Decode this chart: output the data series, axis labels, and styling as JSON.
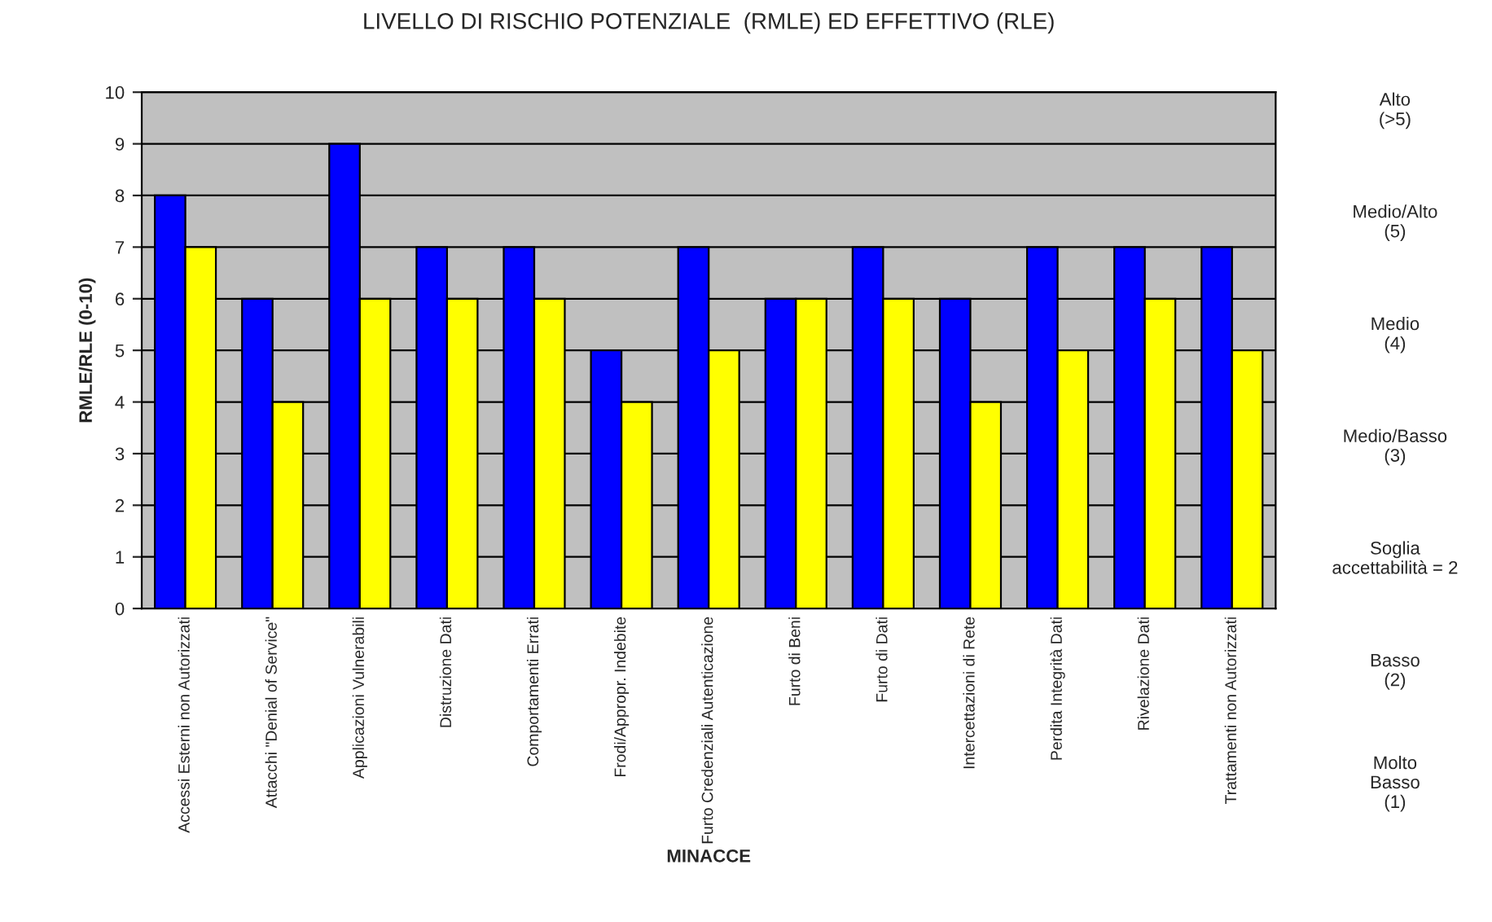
{
  "chart_data": {
    "type": "bar",
    "title": "LIVELLO DI RISCHIO POTENZIALE  (RMLE) ED EFFETTIVO (RLE)",
    "xlabel": "MINACCE",
    "ylabel": "RMLE/RLE (0-10)",
    "categories": [
      "Accessi Esterni non Autorizzati",
      "Attacchi \"Denial of Service\"",
      "Applicazioni Vulnerabili",
      "Distruzione Dati",
      "Comportamenti Errati",
      "Frodi/Appropr. Indebite",
      "Furto Credenziali Autenticazione",
      "Furto di Beni",
      "Furto di Dati",
      "Intercettazioni di Rete",
      "Perdita Integrità Dati",
      "Rivelazione Dati",
      "Trattamenti non Autorizzati"
    ],
    "series": [
      {
        "color": "#0000ff",
        "values": [
          8,
          6,
          9,
          7,
          7,
          5,
          7,
          6,
          7,
          6,
          7,
          7,
          7
        ]
      },
      {
        "color": "#ffff00",
        "values": [
          7,
          4,
          6,
          6,
          6,
          4,
          5,
          6,
          6,
          4,
          5,
          6,
          5
        ]
      }
    ],
    "ylim": [
      0,
      10
    ],
    "yticks": [
      0,
      1,
      2,
      3,
      4,
      5,
      6,
      7,
      8,
      9,
      10
    ],
    "grid": "y",
    "legend": false,
    "annotations": [
      "Alto\n(>5)",
      "Medio/Alto\n(5)",
      "Medio\n(4)",
      "Medio/Basso\n(3)",
      "Soglia\naccettabilità = 2",
      "Basso\n(2)",
      "Molto\nBasso\n(1)"
    ]
  }
}
